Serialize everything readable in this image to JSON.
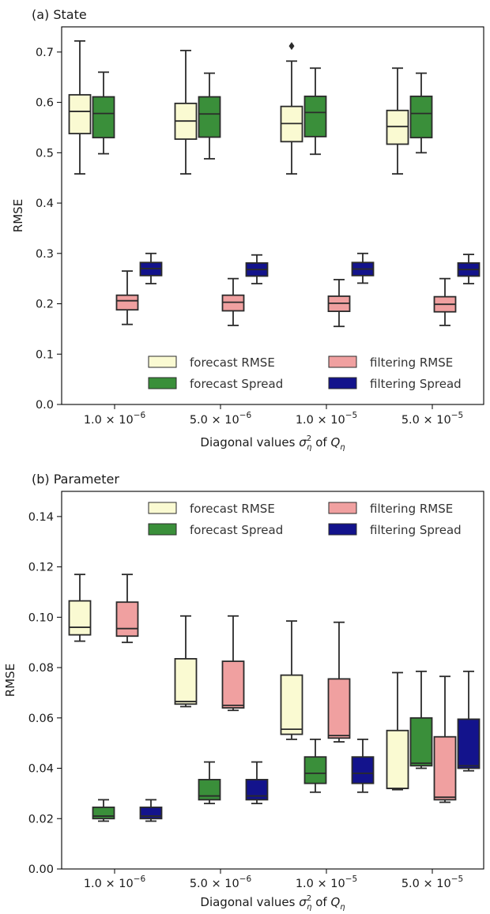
{
  "colors": {
    "forecast_rmse": "#fafad2",
    "forecast_spread": "#3a8f3a",
    "filtering_rmse": "#f0a0a0",
    "filtering_spread": "#13138c",
    "box_edge": "#2b2b2b"
  },
  "legend_entries": [
    "forecast RMSE",
    "forecast Spread",
    "filtering RMSE",
    "filtering Spread"
  ],
  "chart_data": [
    {
      "type": "box",
      "title": "(a) State",
      "ylabel": "RMSE",
      "xlabel": "Diagonal values σ²η of Qη",
      "xlabel_parts": {
        "pre": "Diagonal values ",
        "sigma": "σ",
        "sup": "2",
        "sub1": "η",
        "mid": " of ",
        "q": "Q",
        "sub2": "η"
      },
      "ylim": [
        0.0,
        0.75
      ],
      "yticks": [
        "0.0",
        "0.1",
        "0.2",
        "0.3",
        "0.4",
        "0.5",
        "0.6",
        "0.7"
      ],
      "categories": [
        {
          "mant": "1.0",
          "exp": "−6"
        },
        {
          "mant": "5.0",
          "exp": "−6"
        },
        {
          "mant": "1.0",
          "exp": "−5"
        },
        {
          "mant": "5.0",
          "exp": "−5"
        }
      ],
      "legend": "lower-right",
      "series": [
        {
          "name": "forecast RMSE",
          "color_key": "forecast_rmse",
          "slot": 0,
          "boxes": [
            {
              "whislo": 0.458,
              "q1": 0.538,
              "med": 0.582,
              "q3": 0.615,
              "whishi": 0.722
            },
            {
              "whislo": 0.458,
              "q1": 0.527,
              "med": 0.563,
              "q3": 0.598,
              "whishi": 0.703
            },
            {
              "whislo": 0.458,
              "q1": 0.522,
              "med": 0.558,
              "q3": 0.592,
              "whishi": 0.682,
              "fliers": [
                0.712
              ]
            },
            {
              "whislo": 0.458,
              "q1": 0.517,
              "med": 0.552,
              "q3": 0.584,
              "whishi": 0.668
            }
          ]
        },
        {
          "name": "forecast Spread",
          "color_key": "forecast_spread",
          "slot": 1,
          "boxes": [
            {
              "whislo": 0.498,
              "q1": 0.53,
              "med": 0.578,
              "q3": 0.611,
              "whishi": 0.66
            },
            {
              "whislo": 0.488,
              "q1": 0.531,
              "med": 0.577,
              "q3": 0.611,
              "whishi": 0.658
            },
            {
              "whislo": 0.497,
              "q1": 0.532,
              "med": 0.58,
              "q3": 0.612,
              "whishi": 0.668
            },
            {
              "whislo": 0.5,
              "q1": 0.53,
              "med": 0.578,
              "q3": 0.612,
              "whishi": 0.658
            }
          ]
        },
        {
          "name": "filtering RMSE",
          "color_key": "filtering_rmse",
          "slot": 2,
          "boxes": [
            {
              "whislo": 0.159,
              "q1": 0.188,
              "med": 0.206,
              "q3": 0.217,
              "whishi": 0.265
            },
            {
              "whislo": 0.157,
              "q1": 0.186,
              "med": 0.203,
              "q3": 0.217,
              "whishi": 0.25
            },
            {
              "whislo": 0.155,
              "q1": 0.185,
              "med": 0.201,
              "q3": 0.215,
              "whishi": 0.248
            },
            {
              "whislo": 0.157,
              "q1": 0.184,
              "med": 0.199,
              "q3": 0.214,
              "whishi": 0.25
            }
          ]
        },
        {
          "name": "filtering Spread",
          "color_key": "filtering_spread",
          "slot": 3,
          "boxes": [
            {
              "whislo": 0.24,
              "q1": 0.256,
              "med": 0.27,
              "q3": 0.282,
              "whishi": 0.3
            },
            {
              "whislo": 0.24,
              "q1": 0.255,
              "med": 0.268,
              "q3": 0.281,
              "whishi": 0.297
            },
            {
              "whislo": 0.241,
              "q1": 0.256,
              "med": 0.269,
              "q3": 0.282,
              "whishi": 0.3
            },
            {
              "whislo": 0.24,
              "q1": 0.255,
              "med": 0.268,
              "q3": 0.281,
              "whishi": 0.298
            }
          ]
        }
      ]
    },
    {
      "type": "box",
      "title": "(b) Parameter",
      "ylabel": "RMSE",
      "xlabel": "Diagonal values σ²η of Qη",
      "xlabel_parts": {
        "pre": "Diagonal values ",
        "sigma": "σ",
        "sup": "2",
        "sub1": "η",
        "mid": " of ",
        "q": "Q",
        "sub2": "η"
      },
      "ylim": [
        0.0,
        0.15
      ],
      "yticks": [
        "0.00",
        "0.02",
        "0.04",
        "0.06",
        "0.08",
        "0.10",
        "0.12",
        "0.14"
      ],
      "categories": [
        {
          "mant": "1.0",
          "exp": "−6"
        },
        {
          "mant": "5.0",
          "exp": "−6"
        },
        {
          "mant": "1.0",
          "exp": "−5"
        },
        {
          "mant": "5.0",
          "exp": "−5"
        }
      ],
      "legend": "top-right",
      "series": [
        {
          "name": "forecast RMSE",
          "color_key": "forecast_rmse",
          "slot": 0,
          "boxes": [
            {
              "whislo": 0.0905,
              "q1": 0.093,
              "med": 0.096,
              "q3": 0.1065,
              "whishi": 0.117
            },
            {
              "whislo": 0.0645,
              "q1": 0.0655,
              "med": 0.0665,
              "q3": 0.0835,
              "whishi": 0.1005
            },
            {
              "whislo": 0.0515,
              "q1": 0.0535,
              "med": 0.0555,
              "q3": 0.077,
              "whishi": 0.0985
            },
            {
              "whislo": 0.0315,
              "q1": 0.032,
              "med": 0.032,
              "q3": 0.055,
              "whishi": 0.078
            }
          ]
        },
        {
          "name": "forecast Spread",
          "color_key": "forecast_spread",
          "slot": 1,
          "boxes": [
            {
              "whislo": 0.019,
              "q1": 0.02,
              "med": 0.021,
              "q3": 0.0245,
              "whishi": 0.0275
            },
            {
              "whislo": 0.026,
              "q1": 0.0275,
              "med": 0.029,
              "q3": 0.0355,
              "whishi": 0.0425
            },
            {
              "whislo": 0.0305,
              "q1": 0.034,
              "med": 0.038,
              "q3": 0.0445,
              "whishi": 0.0515
            },
            {
              "whislo": 0.04,
              "q1": 0.041,
              "med": 0.042,
              "q3": 0.06,
              "whishi": 0.0785
            }
          ]
        },
        {
          "name": "filtering RMSE",
          "color_key": "filtering_rmse",
          "slot": 2,
          "boxes": [
            {
              "whislo": 0.09,
              "q1": 0.0925,
              "med": 0.0955,
              "q3": 0.106,
              "whishi": 0.117
            },
            {
              "whislo": 0.063,
              "q1": 0.064,
              "med": 0.065,
              "q3": 0.0825,
              "whishi": 0.1005
            },
            {
              "whislo": 0.0505,
              "q1": 0.052,
              "med": 0.053,
              "q3": 0.0755,
              "whishi": 0.098
            },
            {
              "whislo": 0.0265,
              "q1": 0.0275,
              "med": 0.0285,
              "q3": 0.0525,
              "whishi": 0.0765
            }
          ]
        },
        {
          "name": "filtering Spread",
          "color_key": "filtering_spread",
          "slot": 3,
          "boxes": [
            {
              "whislo": 0.019,
              "q1": 0.02,
              "med": 0.021,
              "q3": 0.0245,
              "whishi": 0.0275
            },
            {
              "whislo": 0.026,
              "q1": 0.0275,
              "med": 0.029,
              "q3": 0.0355,
              "whishi": 0.0425
            },
            {
              "whislo": 0.0305,
              "q1": 0.034,
              "med": 0.038,
              "q3": 0.0445,
              "whishi": 0.0515
            },
            {
              "whislo": 0.039,
              "q1": 0.04,
              "med": 0.041,
              "q3": 0.0595,
              "whishi": 0.0785
            }
          ]
        }
      ]
    }
  ]
}
